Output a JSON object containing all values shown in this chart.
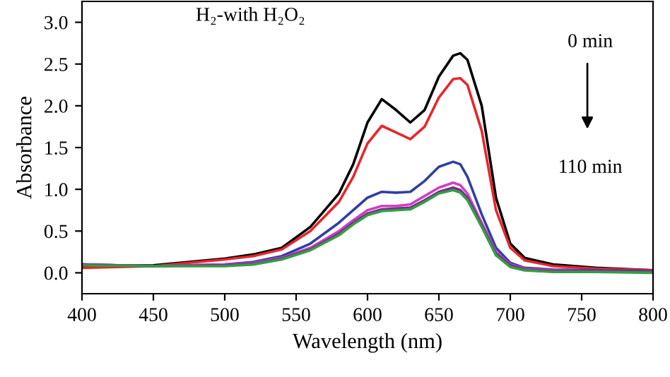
{
  "chart_data": {
    "type": "line",
    "xlabel": "Wavelength (nm)",
    "ylabel": "Absorbance",
    "annotations": [
      "H₂-with H₂O₂",
      "0 min",
      "110 min"
    ],
    "xlim": [
      400,
      800
    ],
    "xticks": [
      400,
      450,
      500,
      550,
      600,
      650,
      700,
      750,
      800
    ],
    "ylim": [
      -0.25,
      3.25
    ],
    "yticks": [
      {
        "value": 0,
        "label": "0.0"
      },
      0.5,
      {
        "value": 1,
        "label": "1.0"
      },
      1.5,
      {
        "value": 2,
        "label": "2.0"
      },
      2.5,
      {
        "value": 3,
        "label": "3.0"
      }
    ],
    "grid": false,
    "marker": "none",
    "line_style": "solid",
    "x": [
      400,
      450,
      500,
      520,
      540,
      560,
      580,
      590,
      600,
      610,
      620,
      630,
      640,
      650,
      660,
      665,
      670,
      680,
      690,
      700,
      710,
      730,
      760,
      800
    ],
    "series": [
      {
        "color": "#000000",
        "values": [
          0.08,
          0.09,
          0.17,
          0.22,
          0.3,
          0.55,
          0.95,
          1.3,
          1.8,
          2.08,
          1.95,
          1.8,
          1.95,
          2.35,
          2.6,
          2.63,
          2.55,
          2.0,
          0.9,
          0.35,
          0.18,
          0.1,
          0.06,
          0.03
        ]
      },
      {
        "color": "#e8262b",
        "values": [
          0.06,
          0.08,
          0.16,
          0.2,
          0.28,
          0.5,
          0.85,
          1.15,
          1.55,
          1.76,
          1.68,
          1.6,
          1.75,
          2.1,
          2.32,
          2.33,
          2.25,
          1.7,
          0.75,
          0.3,
          0.15,
          0.08,
          0.05,
          0.03
        ]
      },
      {
        "color": "#3040a0",
        "values": [
          0.1,
          0.08,
          0.1,
          0.13,
          0.2,
          0.35,
          0.6,
          0.75,
          0.9,
          0.97,
          0.96,
          0.97,
          1.1,
          1.27,
          1.33,
          1.3,
          1.15,
          0.7,
          0.3,
          0.12,
          0.06,
          0.04,
          0.03,
          0.02
        ]
      },
      {
        "color": "#d040c0",
        "values": [
          0.1,
          0.08,
          0.1,
          0.12,
          0.18,
          0.3,
          0.5,
          0.63,
          0.75,
          0.8,
          0.8,
          0.82,
          0.92,
          1.02,
          1.08,
          1.05,
          0.95,
          0.6,
          0.25,
          0.1,
          0.05,
          0.03,
          0.02,
          0.01
        ]
      },
      {
        "color": "#7a2a90",
        "values": [
          0.1,
          0.08,
          0.09,
          0.11,
          0.17,
          0.28,
          0.47,
          0.6,
          0.71,
          0.76,
          0.77,
          0.78,
          0.87,
          0.97,
          1.02,
          0.99,
          0.9,
          0.57,
          0.23,
          0.09,
          0.04,
          0.02,
          0.02,
          0.01
        ]
      },
      {
        "color": "#30a040",
        "values": [
          0.09,
          0.08,
          0.08,
          0.1,
          0.16,
          0.27,
          0.45,
          0.58,
          0.69,
          0.74,
          0.75,
          0.76,
          0.85,
          0.95,
          0.99,
          0.96,
          0.87,
          0.55,
          0.21,
          0.07,
          0.03,
          0.01,
          0.01,
          0.0
        ]
      }
    ]
  }
}
